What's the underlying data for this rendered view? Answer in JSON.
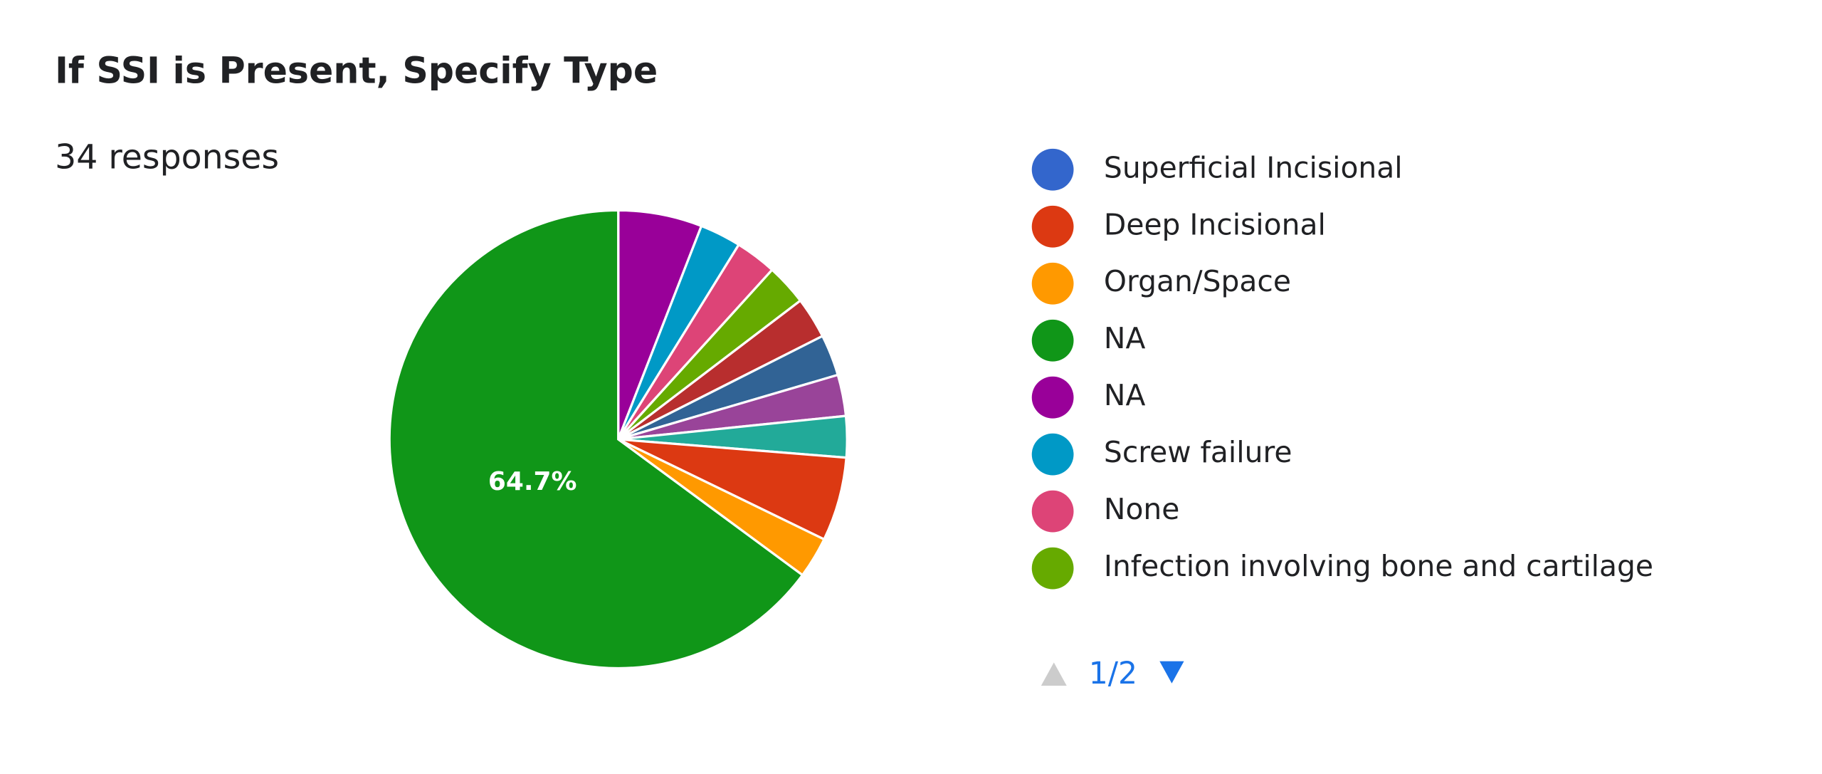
{
  "chart_data": {
    "type": "pie",
    "title": "If SSI is Present, Specify Type",
    "subtitle": "34 responses",
    "categories": [
      "Superficial Incisional",
      "Deep Incisional",
      "Organ/Space",
      "NA",
      "NA",
      "Screw failure",
      "None",
      "Infection involving bone and cartilage",
      null,
      null,
      null,
      null
    ],
    "values": [
      0,
      5.9,
      2.9,
      64.7,
      5.9,
      2.9,
      2.9,
      2.9,
      2.9,
      2.9,
      2.9,
      2.9
    ],
    "value_labels": [
      null,
      null,
      null,
      "64.7%",
      null,
      null,
      null,
      null,
      null,
      null,
      null,
      null
    ],
    "colors": [
      "#3366cc",
      "#dc3912",
      "#ff9900",
      "#109618",
      "#990099",
      "#0099c6",
      "#dd4477",
      "#66aa00",
      "#b82e2e",
      "#316395",
      "#994499",
      "#22aa99"
    ],
    "legend": {
      "position": "right",
      "page": "1/2"
    }
  }
}
